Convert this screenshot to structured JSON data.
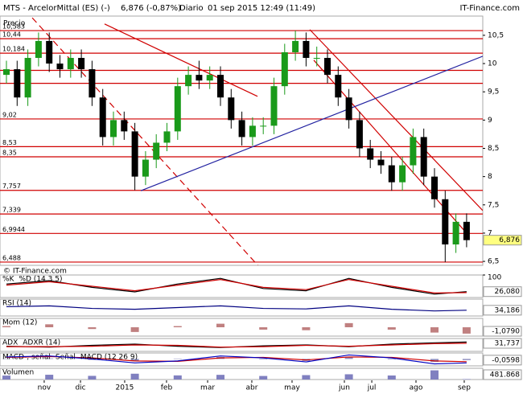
{
  "header": {
    "symbol": "MTS - ArcelorMittal (ES) (-)",
    "quote": "6,876 (-0,87%)",
    "period": "Diario",
    "datetime": "01 sep 2015 12:49 (11:49)",
    "brand": "IT-Finance.com"
  },
  "chart_data": [
    {
      "type": "candlestick",
      "title": "Precio",
      "credit": "© IT-Finance.com",
      "up_color": "#1a9a1a",
      "down_color": "#000000",
      "open": [
        9.8,
        9.9,
        9.4,
        10.1,
        10.4,
        10.0,
        9.9,
        10.1,
        9.9,
        9.4,
        8.7,
        9.0,
        8.8,
        8.0,
        8.3,
        8.6,
        8.8,
        9.6,
        9.8,
        9.7,
        9.8,
        9.4,
        9.0,
        8.7,
        8.9,
        8.9,
        9.6,
        10.2,
        10.4,
        10.1,
        10.1,
        9.8,
        9.4,
        9.0,
        8.5,
        8.3,
        8.2,
        7.9,
        8.2,
        8.7,
        8.0,
        7.6,
        6.8,
        7.2
      ],
      "high": [
        10.05,
        10.05,
        10.25,
        10.55,
        10.55,
        10.15,
        10.25,
        10.25,
        10.05,
        9.55,
        9.15,
        9.15,
        8.95,
        8.45,
        8.75,
        8.95,
        9.75,
        9.95,
        10.05,
        9.95,
        9.95,
        9.55,
        9.15,
        9.05,
        9.05,
        9.75,
        10.35,
        10.583,
        10.55,
        10.3,
        10.25,
        9.95,
        9.55,
        9.15,
        8.65,
        8.45,
        8.35,
        8.35,
        8.85,
        8.85,
        8.15,
        7.75,
        7.35,
        7.35
      ],
      "low": [
        9.65,
        9.25,
        9.25,
        9.95,
        9.85,
        9.75,
        9.75,
        9.75,
        9.25,
        8.55,
        8.55,
        8.65,
        7.76,
        7.85,
        8.15,
        8.45,
        8.65,
        9.45,
        9.55,
        9.55,
        9.25,
        8.85,
        8.55,
        8.55,
        8.75,
        8.75,
        9.45,
        10.05,
        9.95,
        9.95,
        9.65,
        9.25,
        8.85,
        8.35,
        8.15,
        8.05,
        7.75,
        7.75,
        8.05,
        7.85,
        7.45,
        6.488,
        6.65,
        6.75
      ],
      "close": [
        9.9,
        9.4,
        10.1,
        10.4,
        10.0,
        9.9,
        10.1,
        9.9,
        9.4,
        8.7,
        9.0,
        8.8,
        8.0,
        8.3,
        8.6,
        8.8,
        9.6,
        9.8,
        9.7,
        9.8,
        9.4,
        9.0,
        8.7,
        8.9,
        8.9,
        9.6,
        10.2,
        10.4,
        10.1,
        10.1,
        9.8,
        9.4,
        9.0,
        8.5,
        8.3,
        8.2,
        7.9,
        8.2,
        8.7,
        8.0,
        7.6,
        6.8,
        7.2,
        6.876
      ],
      "value_labels": [
        null,
        null,
        null,
        null,
        null,
        null,
        null,
        null,
        null,
        null,
        null,
        null,
        null,
        null,
        null,
        null,
        null,
        null,
        null,
        null,
        null,
        null,
        null,
        null,
        null,
        null,
        null,
        null,
        null,
        null,
        null,
        null,
        null,
        null,
        null,
        null,
        null,
        null,
        null,
        null,
        null,
        null,
        null,
        "6,876"
      ],
      "ylim": [
        6.43,
        10.84
      ],
      "yticks": [
        {
          "value": 10.5,
          "label": "10,5"
        },
        10,
        {
          "value": 9.5,
          "label": "9,5"
        },
        9,
        {
          "value": 8.5,
          "label": "8,5"
        },
        8,
        {
          "value": 7.5,
          "label": "7,5"
        },
        7,
        {
          "value": 6.5,
          "label": "6,5"
        }
      ],
      "xticks": [
        {
          "value": 3.53,
          "label": "nov"
        },
        {
          "value": 6.92,
          "label": "dic"
        },
        {
          "value": 11.05,
          "label": "2015"
        },
        {
          "value": 14.96,
          "label": "feb"
        },
        {
          "value": 18.8,
          "label": "mar"
        },
        {
          "value": 22.93,
          "label": "abr"
        },
        {
          "value": 26.69,
          "label": "may"
        },
        {
          "value": 31.58,
          "label": "jun"
        },
        {
          "value": 34.14,
          "label": "jul"
        },
        {
          "value": 38.27,
          "label": "ago"
        },
        {
          "value": 42.78,
          "label": "sep"
        }
      ],
      "levels_color": "#d00000",
      "levels": [
        {
          "value": 10.583,
          "label": "10,583"
        },
        {
          "value": 10.44,
          "label": "10,44"
        },
        {
          "value": 10.184,
          "label": "10,184"
        },
        9.88,
        9.65,
        {
          "value": 9.02,
          "label": "9,02"
        },
        {
          "value": 8.53,
          "label": "8,53"
        },
        {
          "value": 8.35,
          "label": "8,35"
        },
        {
          "value": 7.757,
          "label": "7,757"
        },
        {
          "value": 7.339,
          "label": "7,339"
        },
        {
          "value": 6.9944,
          "label": "6,9944"
        },
        {
          "value": 6.488,
          "label": "6,488"
        }
      ],
      "trendlines": [
        {
          "x": [
            9.17,
            23.46
          ],
          "y": [
            10.7,
            9.42
          ],
          "color": "#d00000",
          "dashed": false
        },
        {
          "x": [
            28.35,
            44.51
          ],
          "y": [
            10.6,
            7.4
          ],
          "color": "#d00000",
          "dashed": false
        },
        {
          "x": [
            28.72,
            43.0
          ],
          "y": [
            10.06,
            7.0
          ],
          "color": "#d00000",
          "dashed": false
        },
        {
          "x": [
            2.41,
            23.83
          ],
          "y": [
            10.81,
            6.36
          ],
          "color": "#d00000",
          "dashed": true
        },
        {
          "x": [
            12.56,
            44.51
          ],
          "y": [
            7.75,
            10.13
          ],
          "color": "#2020a0",
          "dashed": false
        }
      ]
    },
    {
      "type": "line",
      "x": [
        0,
        4,
        8,
        12,
        16,
        20,
        24,
        28,
        32,
        36,
        40,
        43
      ],
      "ylim": [
        0,
        100
      ],
      "yticks": [
        100
      ],
      "series": [
        {
          "name": "%K",
          "color": "#000000",
          "values": [
            60,
            75,
            45,
            25,
            60,
            85,
            40,
            30,
            85,
            45,
            15,
            26.08
          ],
          "value_labels": [
            null,
            null,
            null,
            null,
            null,
            null,
            null,
            null,
            null,
            null,
            null,
            "26,080"
          ]
        },
        {
          "name": "%D (14 3 5)",
          "color": "#d00000",
          "values": [
            55,
            70,
            50,
            30,
            55,
            80,
            45,
            35,
            80,
            50,
            20,
            22
          ]
        }
      ]
    },
    {
      "type": "line",
      "x": [
        0,
        4,
        8,
        12,
        16,
        20,
        24,
        28,
        32,
        36,
        40,
        43
      ],
      "ylim": [
        0,
        100
      ],
      "series": [
        {
          "name": "RSI (14)",
          "color": "#000080",
          "values": [
            55,
            60,
            45,
            40,
            50,
            60,
            45,
            42,
            60,
            40,
            30,
            34.186
          ],
          "value_labels": [
            null,
            null,
            null,
            null,
            null,
            null,
            null,
            null,
            null,
            null,
            null,
            "34,186"
          ]
        }
      ]
    },
    {
      "type": "line",
      "x": [
        0,
        4,
        8,
        12,
        16,
        20,
        24,
        28,
        32,
        36,
        40,
        43
      ],
      "ylim": [
        -1.5,
        1.5
      ],
      "series": [
        {
          "name": "Mom (12)",
          "color": "#c08080",
          "bars": true,
          "values": [
            0.2,
            0.5,
            -0.3,
            -0.8,
            0.2,
            0.6,
            -0.4,
            -0.5,
            0.7,
            -0.4,
            -0.9,
            -1.079
          ],
          "value_labels": [
            null,
            null,
            null,
            null,
            null,
            null,
            null,
            null,
            null,
            null,
            null,
            "-1,0790"
          ]
        }
      ]
    },
    {
      "type": "line",
      "x": [
        0,
        4,
        8,
        12,
        16,
        20,
        24,
        28,
        32,
        36,
        40,
        43
      ],
      "ylim": [
        10,
        40
      ],
      "series": [
        {
          "name": "ADX",
          "color": "#000000",
          "values": [
            22,
            20,
            24,
            27,
            22,
            19,
            23,
            25,
            21,
            27,
            30,
            31.737
          ],
          "value_labels": [
            null,
            null,
            null,
            null,
            null,
            null,
            null,
            null,
            null,
            null,
            null,
            "31,737"
          ]
        },
        {
          "name": "ADXR (14)",
          "color": "#d00000",
          "values": [
            21,
            21,
            22,
            25,
            24,
            20,
            21,
            24,
            22,
            25,
            28,
            29
          ]
        }
      ]
    },
    {
      "type": "line",
      "x": [
        0,
        4,
        8,
        12,
        16,
        20,
        24,
        28,
        32,
        36,
        40,
        43
      ],
      "ylim": [
        -0.35,
        0.3
      ],
      "series": [
        {
          "name": "MACD-, señal",
          "color": "#9090c0",
          "bars": true,
          "values": [
            0.02,
            0.03,
            -0.05,
            -0.1,
            0.02,
            0.1,
            -0.03,
            -0.1,
            0.1,
            -0.03,
            -0.15,
            -0.0598
          ],
          "value_labels": [
            null,
            null,
            null,
            null,
            null,
            null,
            null,
            null,
            null,
            null,
            null,
            "-0,0598"
          ]
        },
        {
          "name": "Señal",
          "color": "#d00000",
          "values": [
            0.08,
            0.12,
            0.05,
            -0.1,
            -0.12,
            0.05,
            0.08,
            -0.05,
            0.1,
            0.08,
            -0.1,
            -0.14
          ]
        },
        {
          "name": "MACD (12 26 9)",
          "color": "#0000c0",
          "values": [
            0.1,
            0.15,
            0.0,
            -0.2,
            -0.1,
            0.15,
            0.05,
            -0.15,
            0.2,
            0.05,
            -0.25,
            -0.2
          ]
        }
      ]
    },
    {
      "type": "bar",
      "x": [
        0,
        4,
        8,
        12,
        16,
        20,
        24,
        28,
        32,
        36,
        40,
        43
      ],
      "ylim": [
        0,
        12000000
      ],
      "series": [
        {
          "name": "Volumen",
          "color": "#8080c0",
          "bars": true,
          "values": [
            4200000,
            5100000,
            3900000,
            6200000,
            4400000,
            5000000,
            3800000,
            4700000,
            5600000,
            4300000,
            9800000,
            481868
          ],
          "value_labels": [
            null,
            null,
            null,
            null,
            null,
            null,
            null,
            null,
            null,
            null,
            null,
            "481.868"
          ]
        }
      ]
    }
  ]
}
